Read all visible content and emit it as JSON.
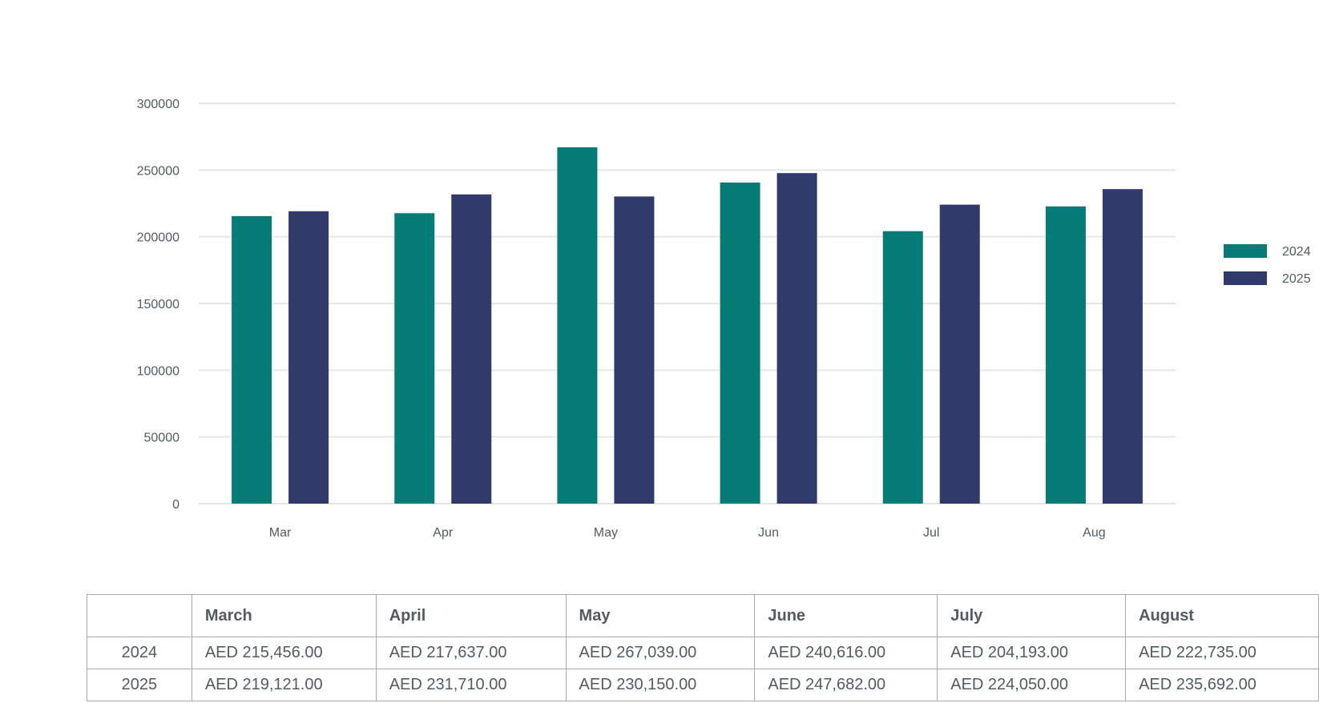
{
  "chart_data": {
    "type": "bar",
    "categories": [
      "Mar",
      "Apr",
      "May",
      "Jun",
      "Jul",
      "Aug"
    ],
    "series": [
      {
        "name": "2024",
        "color": "#077b75",
        "values": [
          215456,
          217637,
          267039,
          240616,
          204193,
          222735
        ]
      },
      {
        "name": "2025",
        "color": "#303a6b",
        "values": [
          219121,
          231710,
          230150,
          247682,
          224050,
          235692
        ]
      }
    ],
    "yticks": [
      0,
      50000,
      100000,
      150000,
      200000,
      250000,
      300000
    ],
    "ylim": [
      0,
      300000
    ],
    "grid": true,
    "legend_position": "right"
  },
  "table": {
    "headers": [
      "",
      "March",
      "April",
      "May",
      "June",
      "July",
      "August"
    ],
    "rows": [
      {
        "label": "2024",
        "cells": [
          "AED 215,456.00",
          "AED 217,637.00",
          "AED 267,039.00",
          "AED 240,616.00",
          "AED 204,193.00",
          "AED 222,735.00"
        ]
      },
      {
        "label": "2025",
        "cells": [
          "AED 219,121.00",
          "AED 231,710.00",
          "AED 230,150.00",
          "AED 247,682.00",
          "AED 224,050.00",
          "AED 235,692.00"
        ]
      }
    ]
  }
}
